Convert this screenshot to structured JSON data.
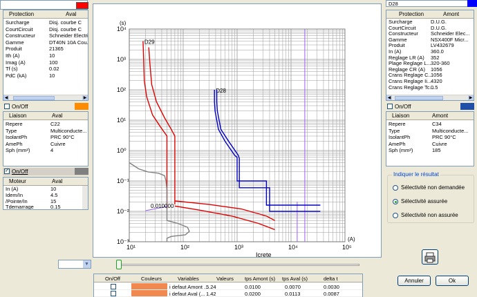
{
  "top_bar": {
    "right_field": "D28"
  },
  "protection_aval": {
    "headers": [
      "Protection",
      "Aval"
    ],
    "color": "#ff0000",
    "rows": [
      {
        "k": "Surcharge",
        "v": "Disj. courbe C"
      },
      {
        "k": "CourtCircuit",
        "v": "Disj. courbe C"
      },
      {
        "k": "Constructeur",
        "v": "Schneider Electric"
      },
      {
        "k": "Gamme",
        "v": "DT40N 10A Cou..."
      },
      {
        "k": "Produit",
        "v": "21365"
      },
      {
        "k": "Ith (A)",
        "v": "10"
      },
      {
        "k": "Imag (A)",
        "v": "100"
      },
      {
        "k": "Tf (s)",
        "v": "0.02"
      },
      {
        "k": "PdC (kA)",
        "v": "10"
      }
    ]
  },
  "onoff_1": {
    "label": "On/Off",
    "checked": false,
    "color": "#ff8c00"
  },
  "liaison_aval": {
    "headers": [
      "Liaison",
      "Aval"
    ],
    "rows": [
      {
        "k": "Repere",
        "v": "C22"
      },
      {
        "k": "Type",
        "v": "Multiconducte..."
      },
      {
        "k": "IsolantPh",
        "v": "PRC 90°C"
      },
      {
        "k": "AmePh",
        "v": "Cuivre"
      },
      {
        "k": "Sph (mm²)",
        "v": "4"
      }
    ]
  },
  "onoff_2": {
    "label": "On/Off",
    "checked": true,
    "color": "#808080"
  },
  "moteur_aval": {
    "headers": [
      "Moteur",
      "Aval"
    ],
    "rows": [
      {
        "k": "In (A)",
        "v": "10"
      },
      {
        "k": "Idem/In",
        "v": "4.5"
      },
      {
        "k": "/Pointe/In",
        "v": "15"
      },
      {
        "k": "Tdemarrage",
        "v": "0.15"
      }
    ]
  },
  "protection_amont": {
    "headers": [
      "Protection",
      "Amont"
    ],
    "color": "#0000ff",
    "rows": [
      {
        "k": "Surcharge",
        "v": "D.U.G."
      },
      {
        "k": "CourtCircuit",
        "v": "D.U.G."
      },
      {
        "k": "Constructeur",
        "v": "Schneider Elec..."
      },
      {
        "k": "Gamme",
        "v": "NSX400F Micr..."
      },
      {
        "k": "Produit",
        "v": "LV432679"
      },
      {
        "k": "In (A)",
        "v": "360.0"
      },
      {
        "k": "Reglage LR (A)",
        "v": "352"
      },
      {
        "k": "Plage Reglage L...",
        "v": "320-360"
      },
      {
        "k": "Reglage CR (A)",
        "v": "1056"
      },
      {
        "k": "Crans Reglage C...",
        "v": "1056"
      },
      {
        "k": "Crans Reglage Ii...",
        "v": "4320"
      },
      {
        "k": "Crans Reglage Tc...",
        "v": "0.5"
      }
    ]
  },
  "onoff_3": {
    "label": "On/Off",
    "checked": false,
    "color": "#1f4fa8"
  },
  "liaison_amont": {
    "headers": [
      "Liaison",
      "Amont"
    ],
    "rows": [
      {
        "k": "Repere",
        "v": "C34"
      },
      {
        "k": "Type",
        "v": "Multiconducte..."
      },
      {
        "k": "IsolantPh",
        "v": "PRC 90°C"
      },
      {
        "k": "AmePh",
        "v": "Cuivre"
      },
      {
        "k": "Sph (mm²)",
        "v": "185"
      }
    ]
  },
  "result": {
    "legend": "Indiquer le résultat",
    "options": [
      "Sélectivité non demandée",
      "Sélectivité assurée",
      "Sélectivité non assurée"
    ],
    "selected": 1
  },
  "chart_data": {
    "type": "line",
    "title": "",
    "xlabel": "Icrete",
    "x_unit": "(A)",
    "ylabel": "(s)",
    "x_scale": "log",
    "y_scale": "log",
    "xlim": [
      10,
      100000
    ],
    "ylim": [
      0.001,
      10000
    ],
    "x_ticks": [
      "10¹",
      "10²",
      "10³",
      "10⁴",
      "10⁵"
    ],
    "y_ticks": [
      "10⁻³",
      "10⁻²",
      "10⁻¹",
      "10⁰",
      "10¹",
      "10²",
      "10³",
      "10⁴"
    ],
    "vertical_marker_A": 18000,
    "vertical_marker_B": 13000,
    "annotation": "0.010000",
    "series": [
      {
        "name": "D29",
        "color": "#e00000",
        "x": [
          18,
          18.5,
          19,
          21,
          27,
          38,
          50,
          50,
          50
        ],
        "y": [
          4000,
          1000,
          200,
          60,
          15,
          6,
          3,
          1,
          0.012
        ]
      },
      {
        "name": "",
        "color": "#e00000",
        "x": [
          23,
          24,
          26,
          32,
          45,
          60,
          70,
          70,
          70
        ],
        "y": [
          2500,
          800,
          150,
          40,
          12,
          5,
          3,
          1,
          0.017
        ]
      },
      {
        "name": "",
        "color": "#e00000",
        "x": [
          70,
          200,
          800,
          2500,
          5000
        ],
        "y": [
          0.015,
          0.011,
          0.007,
          0.004,
          0.0025
        ]
      },
      {
        "name": "",
        "color": "#e00000",
        "x": [
          70,
          300,
          1200,
          3500,
          5000
        ],
        "y": [
          0.022,
          0.017,
          0.012,
          0.007,
          0.005
        ]
      },
      {
        "name": "D28",
        "color": "#0000c8",
        "x": [
          380,
          380,
          390,
          450,
          600,
          900,
          1000,
          1000,
          1000,
          2500,
          3500,
          3500,
          35000
        ],
        "y": [
          100,
          40,
          20,
          5,
          2,
          0.7,
          0.6,
          0.1,
          0.1,
          0.1,
          0.1,
          0.016,
          0.016
        ]
      },
      {
        "name": "",
        "color": "#0000c8",
        "x": [
          420,
          420,
          430,
          500,
          700,
          1050,
          1100,
          1100,
          1100,
          3000,
          4000,
          4000,
          35000
        ],
        "y": [
          100,
          40,
          20,
          5,
          2,
          0.7,
          0.55,
          0.06,
          0.06,
          0.06,
          0.06,
          0.01,
          0.01
        ]
      },
      {
        "name": "",
        "color": "#808080",
        "x": [
          10,
          15,
          22,
          35,
          45,
          48,
          50,
          50,
          80,
          120,
          130,
          110,
          60,
          50,
          50,
          50
        ],
        "y": [
          0.4,
          0.25,
          0.2,
          0.18,
          0.15,
          0.1,
          0.05,
          0.005,
          0.004,
          0.003,
          0.0022,
          0.0017,
          0.0015,
          0.0013,
          0.001,
          0.001
        ]
      }
    ]
  },
  "bottom_table": {
    "headers": [
      "On/Off",
      "Couleurs",
      "Variables",
      "Valeurs",
      "tps Amont (s)",
      "tps Aval (s)",
      "delta t"
    ],
    "rows": [
      {
        "color": "#f08850",
        "var": "i defaut Amont ...",
        "val": "5.24",
        "amont": "0.0100",
        "aval": "0.0070",
        "delta": "0.0030"
      },
      {
        "color": "#f08850",
        "var": "i defaut Aval (...",
        "val": "1.42",
        "amont": "0.0200",
        "aval": "0.0113",
        "delta": "0.0087"
      }
    ]
  },
  "buttons": {
    "cancel": "Annuler",
    "ok": "Ok"
  }
}
